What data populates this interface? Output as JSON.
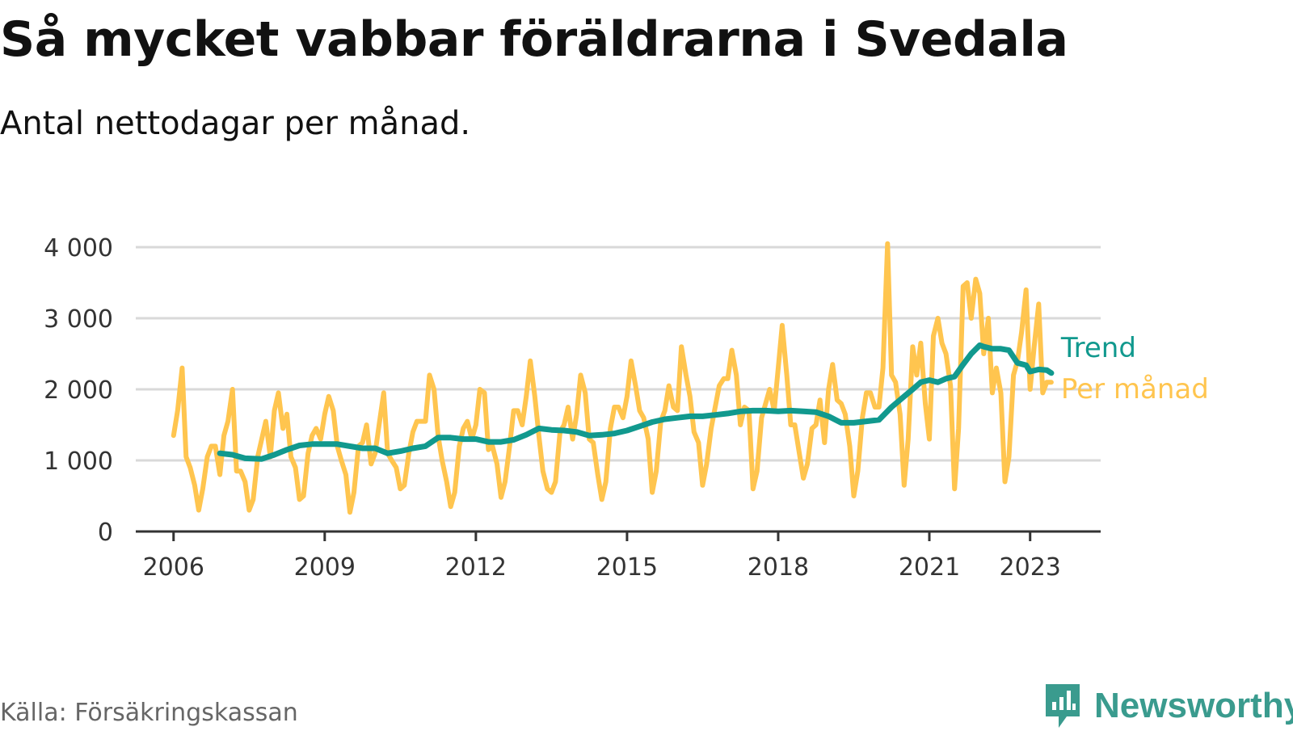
{
  "chart_data": {
    "type": "line",
    "title": "Så mycket vabbar föräldrarna i Svedala",
    "subtitle": "Antal nettodagar per månad.",
    "source": "Källa: Försäkringskassan",
    "brand": "Newsworthy",
    "x_ticks": [
      "2006",
      "2009",
      "2012",
      "2015",
      "2018",
      "2021",
      "2023"
    ],
    "y_ticks": [
      "0",
      "1 000",
      "2 000",
      "3 000",
      "4 000"
    ],
    "ylim": [
      0,
      4000
    ],
    "xlim": [
      2005.25,
      2024.4
    ],
    "grid": true,
    "series": [
      {
        "name": "Per månad",
        "color": "#ffc54f",
        "x": [
          2006.0,
          2006.08,
          2006.17,
          2006.25,
          2006.33,
          2006.42,
          2006.5,
          2006.58,
          2006.67,
          2006.75,
          2006.83,
          2006.92,
          2007.0,
          2007.08,
          2007.17,
          2007.25,
          2007.33,
          2007.42,
          2007.5,
          2007.58,
          2007.67,
          2007.75,
          2007.83,
          2007.92,
          2008.0,
          2008.08,
          2008.17,
          2008.25,
          2008.33,
          2008.42,
          2008.5,
          2008.58,
          2008.67,
          2008.75,
          2008.83,
          2008.92,
          2009.0,
          2009.08,
          2009.17,
          2009.25,
          2009.33,
          2009.42,
          2009.5,
          2009.58,
          2009.67,
          2009.75,
          2009.83,
          2009.92,
          2010.0,
          2010.08,
          2010.17,
          2010.25,
          2010.33,
          2010.42,
          2010.5,
          2010.58,
          2010.67,
          2010.75,
          2010.83,
          2010.92,
          2011.0,
          2011.08,
          2011.17,
          2011.25,
          2011.33,
          2011.42,
          2011.5,
          2011.58,
          2011.67,
          2011.75,
          2011.83,
          2011.92,
          2012.0,
          2012.08,
          2012.17,
          2012.25,
          2012.33,
          2012.42,
          2012.5,
          2012.58,
          2012.67,
          2012.75,
          2012.83,
          2012.92,
          2013.0,
          2013.08,
          2013.17,
          2013.25,
          2013.33,
          2013.42,
          2013.5,
          2013.58,
          2013.67,
          2013.75,
          2013.83,
          2013.92,
          2014.0,
          2014.08,
          2014.17,
          2014.25,
          2014.33,
          2014.42,
          2014.5,
          2014.58,
          2014.67,
          2014.75,
          2014.83,
          2014.92,
          2015.0,
          2015.08,
          2015.17,
          2015.25,
          2015.33,
          2015.42,
          2015.5,
          2015.58,
          2015.67,
          2015.75,
          2015.83,
          2015.92,
          2016.0,
          2016.08,
          2016.17,
          2016.25,
          2016.33,
          2016.42,
          2016.5,
          2016.58,
          2016.67,
          2016.75,
          2016.83,
          2016.92,
          2017.0,
          2017.08,
          2017.17,
          2017.25,
          2017.33,
          2017.42,
          2017.5,
          2017.58,
          2017.67,
          2017.75,
          2017.83,
          2017.92,
          2018.0,
          2018.08,
          2018.17,
          2018.25,
          2018.33,
          2018.42,
          2018.5,
          2018.58,
          2018.67,
          2018.75,
          2018.83,
          2018.92,
          2019.0,
          2019.08,
          2019.17,
          2019.25,
          2019.33,
          2019.42,
          2019.5,
          2019.58,
          2019.67,
          2019.75,
          2019.83,
          2019.92,
          2020.0,
          2020.08,
          2020.17,
          2020.25,
          2020.33,
          2020.42,
          2020.5,
          2020.58,
          2020.67,
          2020.75,
          2020.83,
          2020.92,
          2021.0,
          2021.08,
          2021.17,
          2021.25,
          2021.33,
          2021.42,
          2021.5,
          2021.58,
          2021.67,
          2021.75,
          2021.83,
          2021.92,
          2022.0,
          2022.08,
          2022.17,
          2022.25,
          2022.33,
          2022.42,
          2022.5,
          2022.58,
          2022.67,
          2022.75,
          2022.83,
          2022.92,
          2023.0,
          2023.08,
          2023.17,
          2023.25,
          2023.33,
          2023.42
        ],
        "values": [
          1350,
          1700,
          2300,
          1050,
          900,
          650,
          300,
          600,
          1050,
          1200,
          1200,
          800,
          1350,
          1550,
          2000,
          850,
          850,
          700,
          300,
          450,
          1050,
          1300,
          1550,
          1050,
          1700,
          1950,
          1450,
          1650,
          1050,
          900,
          450,
          500,
          1100,
          1350,
          1450,
          1300,
          1650,
          1900,
          1700,
          1200,
          1000,
          800,
          270,
          550,
          1200,
          1250,
          1500,
          950,
          1100,
          1500,
          1950,
          1100,
          1000,
          900,
          600,
          650,
          1100,
          1400,
          1550,
          1550,
          1550,
          2200,
          2000,
          1350,
          1000,
          700,
          350,
          550,
          1200,
          1450,
          1550,
          1300,
          1500,
          2000,
          1950,
          1150,
          1200,
          950,
          480,
          700,
          1200,
          1700,
          1700,
          1500,
          1900,
          2400,
          1900,
          1350,
          850,
          600,
          550,
          700,
          1400,
          1500,
          1750,
          1300,
          1650,
          2200,
          1950,
          1300,
          1250,
          800,
          450,
          700,
          1450,
          1750,
          1750,
          1600,
          1900,
          2400,
          2050,
          1700,
          1600,
          1300,
          550,
          850,
          1550,
          1700,
          2050,
          1750,
          1700,
          2600,
          2200,
          1900,
          1400,
          1250,
          650,
          950,
          1450,
          1750,
          2050,
          2150,
          2150,
          2550,
          2200,
          1500,
          1750,
          1700,
          600,
          850,
          1600,
          1800,
          2000,
          1700,
          2300,
          2900,
          2200,
          1500,
          1500,
          1100,
          750,
          950,
          1450,
          1500,
          1850,
          1250,
          2000,
          2350,
          1850,
          1800,
          1650,
          1200,
          500,
          850,
          1600,
          1950,
          1950,
          1750,
          1750,
          2300,
          4050,
          2200,
          2100,
          1650,
          650,
          1300,
          2600,
          2200,
          2650,
          1800,
          1300,
          2750,
          3000,
          2650,
          2500,
          2050,
          600,
          1450,
          3450,
          3500,
          3000,
          3550,
          3350,
          2500,
          3000,
          1950,
          2300,
          1950,
          700,
          1050,
          2200,
          2400,
          2800,
          3400,
          2000,
          2600,
          3200,
          1950,
          2100,
          2100
        ]
      },
      {
        "name": "Trend",
        "color": "#11998e",
        "x": [
          2006.92,
          2007.17,
          2007.42,
          2007.75,
          2008.0,
          2008.25,
          2008.5,
          2008.75,
          2009.0,
          2009.25,
          2009.5,
          2009.75,
          2010.0,
          2010.25,
          2010.5,
          2010.75,
          2011.0,
          2011.25,
          2011.5,
          2011.75,
          2012.0,
          2012.25,
          2012.5,
          2012.75,
          2013.0,
          2013.25,
          2013.5,
          2013.75,
          2014.0,
          2014.25,
          2014.5,
          2014.75,
          2015.0,
          2015.25,
          2015.5,
          2015.75,
          2016.0,
          2016.25,
          2016.5,
          2016.75,
          2017.0,
          2017.25,
          2017.5,
          2017.75,
          2018.0,
          2018.25,
          2018.5,
          2018.75,
          2019.0,
          2019.25,
          2019.5,
          2019.75,
          2020.0,
          2020.25,
          2020.5,
          2020.67,
          2020.83,
          2021.0,
          2021.17,
          2021.33,
          2021.5,
          2021.67,
          2021.83,
          2022.0,
          2022.08,
          2022.25,
          2022.42,
          2022.58,
          2022.75,
          2022.92,
          2023.0,
          2023.17,
          2023.33,
          2023.42
        ],
        "values": [
          1100,
          1080,
          1030,
          1020,
          1080,
          1150,
          1210,
          1230,
          1230,
          1230,
          1200,
          1170,
          1170,
          1100,
          1130,
          1170,
          1200,
          1320,
          1320,
          1300,
          1300,
          1260,
          1260,
          1290,
          1360,
          1450,
          1430,
          1420,
          1400,
          1350,
          1360,
          1380,
          1420,
          1480,
          1540,
          1580,
          1600,
          1620,
          1620,
          1640,
          1660,
          1690,
          1700,
          1700,
          1690,
          1700,
          1690,
          1680,
          1620,
          1530,
          1530,
          1550,
          1570,
          1750,
          1900,
          2000,
          2100,
          2130,
          2100,
          2150,
          2180,
          2350,
          2500,
          2620,
          2600,
          2570,
          2570,
          2550,
          2370,
          2340,
          2250,
          2280,
          2270,
          2230
        ]
      }
    ]
  }
}
